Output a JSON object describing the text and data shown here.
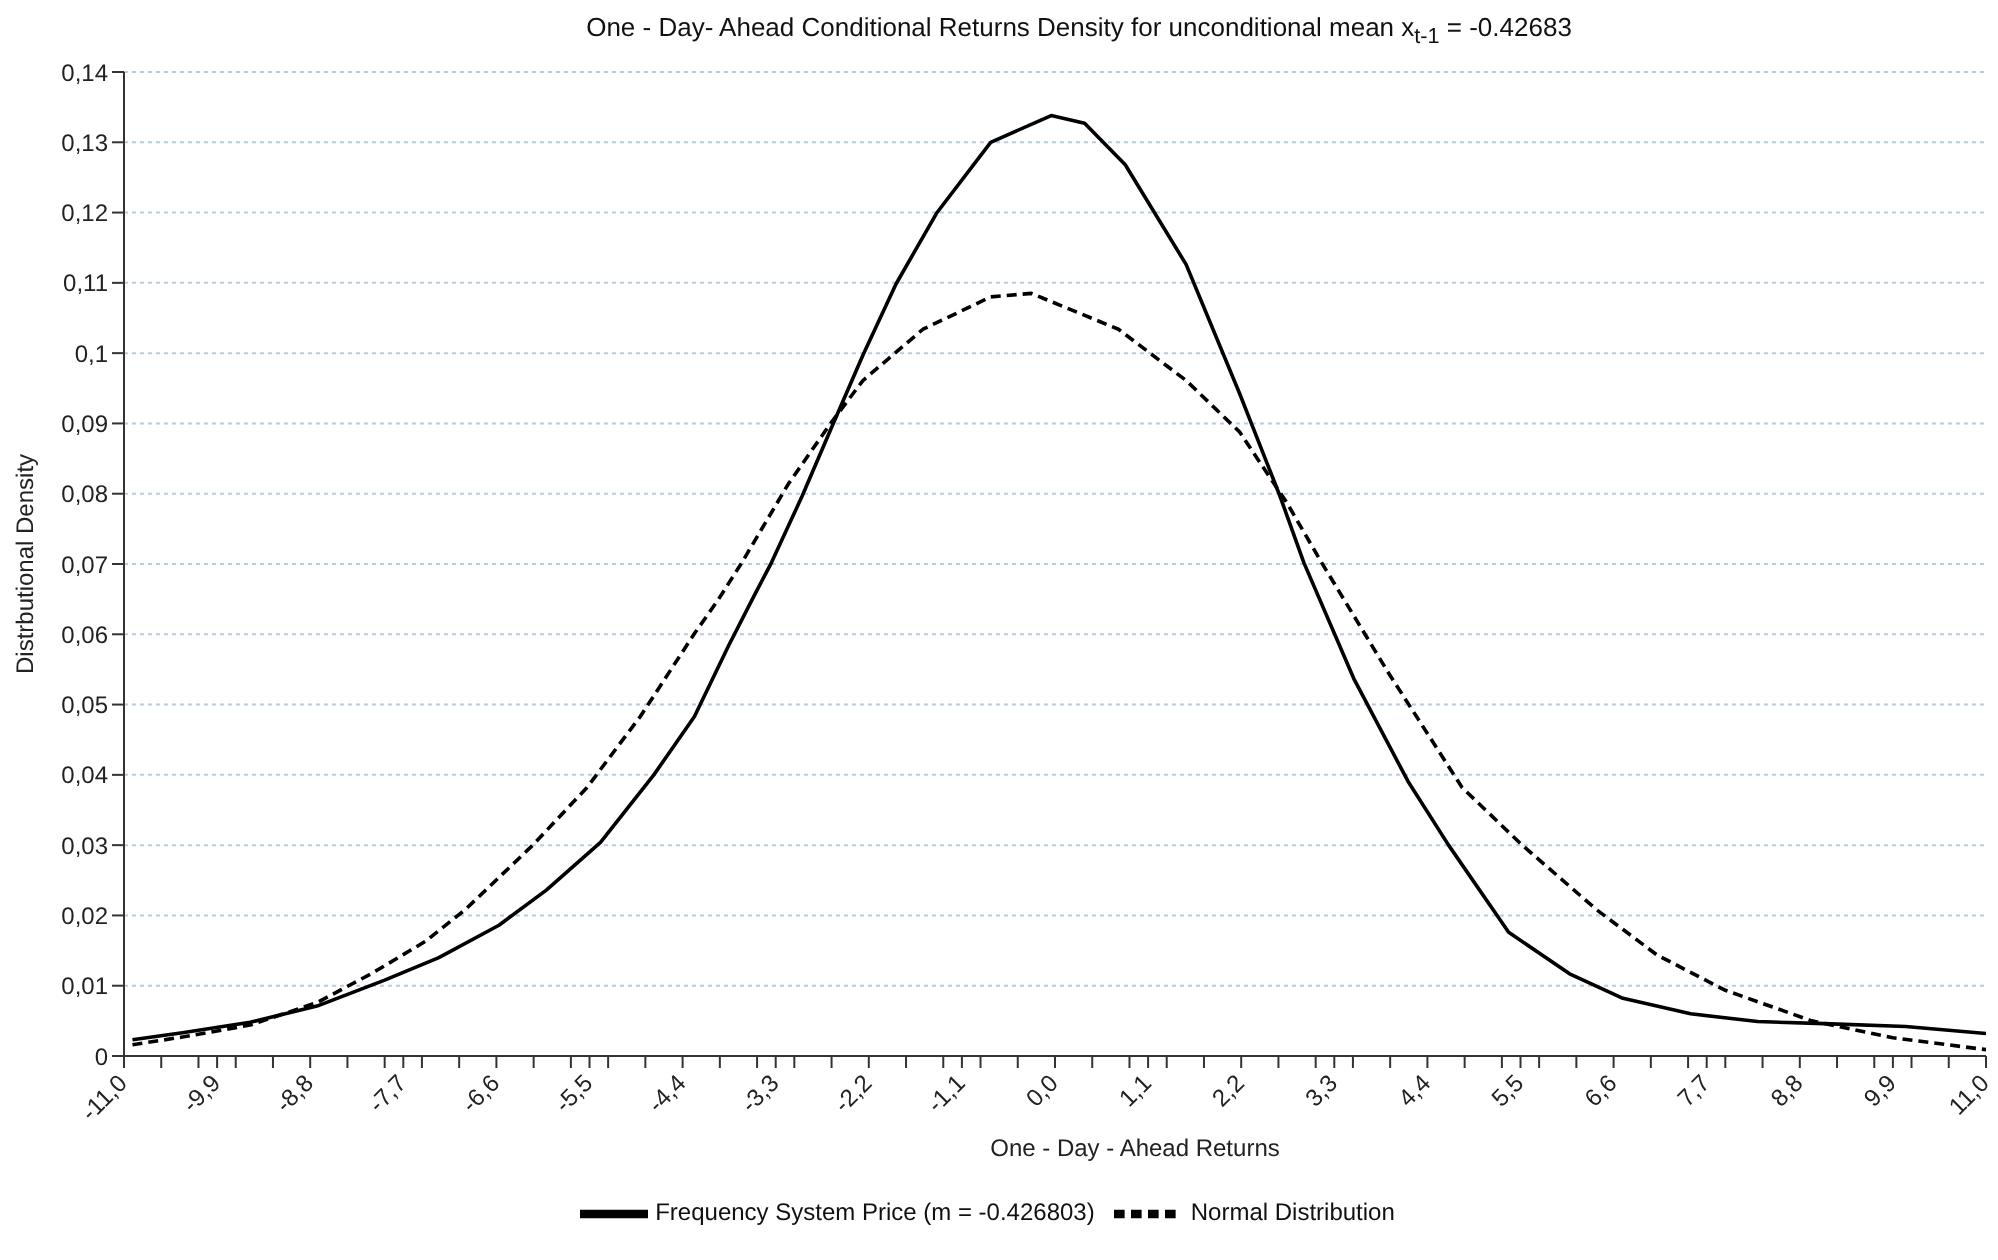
{
  "chart_data": {
    "type": "line",
    "title": "One - Day- Ahead Conditional Returns Density for unconditional mean x$_{t-1}$ = -0.42683",
    "xlabel": "One - Day - Ahead Returns",
    "ylabel": "Distrbutional Density",
    "series": [
      {
        "name": "Frequency System Price (m = -0.426803)",
        "color": "#000000",
        "line_style": "solid",
        "x": [
          -10.9,
          -10.31,
          -9.51,
          -8.72,
          -7.92,
          -7.28,
          -6.57,
          -6.01,
          -5.37,
          -4.74,
          -4.26,
          -3.86,
          -3.58,
          -3.35,
          -2.99,
          -2.63,
          -2.27,
          -1.88,
          -1.4,
          -0.76,
          -0.045,
          0.35,
          0.83,
          1.55,
          2.18,
          2.66,
          2.94,
          3.53,
          4.17,
          4.65,
          5.36,
          6.08,
          6.71,
          7.51,
          8.3,
          9.09,
          10.05,
          11.0
        ],
        "values": [
          0.0023,
          0.0033,
          0.0048,
          0.0071,
          0.0108,
          0.014,
          0.0186,
          0.0236,
          0.0304,
          0.04,
          0.0483,
          0.0583,
          0.0649,
          0.0702,
          0.0796,
          0.0897,
          0.0997,
          0.1098,
          0.1199,
          0.13,
          0.1338,
          0.1327,
          0.1268,
          0.1126,
          0.0943,
          0.0796,
          0.0702,
          0.0537,
          0.0391,
          0.03,
          0.0176,
          0.0117,
          0.0082,
          0.006,
          0.0049,
          0.0046,
          0.0042,
          0.0032
        ]
      },
      {
        "name": "Normal Distribution",
        "color": "#000000",
        "line_style": "dashed",
        "x": [
          -10.9,
          -10.31,
          -9.51,
          -8.72,
          -8.08,
          -7.44,
          -6.97,
          -6.17,
          -5.53,
          -4.9,
          -4.26,
          -3.98,
          -3.7,
          -3.15,
          -2.67,
          -2.27,
          -1.56,
          -0.76,
          -0.28,
          0.75,
          1.55,
          2.18,
          2.74,
          3.15,
          3.93,
          4.81,
          5.52,
          6.4,
          7.11,
          7.91,
          8.94,
          9.9,
          11.0
        ],
        "values": [
          0.0016,
          0.0027,
          0.0044,
          0.0076,
          0.0117,
          0.0163,
          0.0208,
          0.03,
          0.0382,
          0.0483,
          0.0601,
          0.0649,
          0.0702,
          0.0814,
          0.0897,
          0.0961,
          0.1034,
          0.108,
          0.1085,
          0.1034,
          0.0961,
          0.0888,
          0.0787,
          0.0702,
          0.0547,
          0.0382,
          0.03,
          0.0208,
          0.0144,
          0.0094,
          0.005,
          0.0026,
          0.0009
        ]
      }
    ],
    "xlim": [
      -11,
      11
    ],
    "xticks": [
      {
        "value": -11,
        "label": "-11,0"
      },
      {
        "value": -10.56,
        "label": null
      },
      {
        "value": -10.12,
        "label": null
      },
      {
        "value": -9.9,
        "label": "-9,9"
      },
      {
        "value": -9.68,
        "label": null
      },
      {
        "value": -9.24,
        "label": null
      },
      {
        "value": -8.8,
        "label": "-8,8"
      },
      {
        "value": -8.36,
        "label": null
      },
      {
        "value": -7.92,
        "label": null
      },
      {
        "value": -7.7,
        "label": "-7,7"
      },
      {
        "value": -7.48,
        "label": null
      },
      {
        "value": -7.04,
        "label": null
      },
      {
        "value": -6.6,
        "label": "-6,6"
      },
      {
        "value": -6.16,
        "label": null
      },
      {
        "value": -5.72,
        "label": null
      },
      {
        "value": -5.5,
        "label": "-5,5"
      },
      {
        "value": -5.28,
        "label": null
      },
      {
        "value": -4.84,
        "label": null
      },
      {
        "value": -4.4,
        "label": "-4,4"
      },
      {
        "value": -3.96,
        "label": null
      },
      {
        "value": -3.52,
        "label": null
      },
      {
        "value": -3.3,
        "label": "-3,3"
      },
      {
        "value": -3.08,
        "label": null
      },
      {
        "value": -2.64,
        "label": null
      },
      {
        "value": -2.2,
        "label": "-2,2"
      },
      {
        "value": -1.76,
        "label": null
      },
      {
        "value": -1.32,
        "label": null
      },
      {
        "value": -1.1,
        "label": "-1,1"
      },
      {
        "value": -0.88,
        "label": null
      },
      {
        "value": -0.44,
        "label": null
      },
      {
        "value": 0,
        "label": "0,0"
      },
      {
        "value": 0.44,
        "label": null
      },
      {
        "value": 0.88,
        "label": null
      },
      {
        "value": 1.1,
        "label": "1,1"
      },
      {
        "value": 1.32,
        "label": null
      },
      {
        "value": 1.76,
        "label": null
      },
      {
        "value": 2.2,
        "label": "2,2"
      },
      {
        "value": 2.64,
        "label": null
      },
      {
        "value": 3.08,
        "label": null
      },
      {
        "value": 3.3,
        "label": "3,3"
      },
      {
        "value": 3.52,
        "label": null
      },
      {
        "value": 3.96,
        "label": null
      },
      {
        "value": 4.4,
        "label": "4,4"
      },
      {
        "value": 4.84,
        "label": null
      },
      {
        "value": 5.28,
        "label": null
      },
      {
        "value": 5.5,
        "label": "5,5"
      },
      {
        "value": 5.72,
        "label": null
      },
      {
        "value": 6.16,
        "label": null
      },
      {
        "value": 6.6,
        "label": "6,6"
      },
      {
        "value": 7.04,
        "label": null
      },
      {
        "value": 7.48,
        "label": null
      },
      {
        "value": 7.7,
        "label": "7,7"
      },
      {
        "value": 7.92,
        "label": null
      },
      {
        "value": 8.36,
        "label": null
      },
      {
        "value": 8.8,
        "label": "8,8"
      },
      {
        "value": 9.24,
        "label": null
      },
      {
        "value": 9.68,
        "label": null
      },
      {
        "value": 9.9,
        "label": "9,9"
      },
      {
        "value": 10.12,
        "label": null
      },
      {
        "value": 10.56,
        "label": null
      },
      {
        "value": 11,
        "label": "11,0"
      }
    ],
    "ylim": [
      0,
      0.14
    ],
    "yticks": [
      0,
      {
        "value": 0.01,
        "label": "0,01"
      },
      {
        "value": 0.02,
        "label": "0,02"
      },
      {
        "value": 0.03,
        "label": "0,03"
      },
      {
        "value": 0.04,
        "label": "0,04"
      },
      {
        "value": 0.05,
        "label": "0,05"
      },
      {
        "value": 0.06,
        "label": "0,06"
      },
      {
        "value": 0.07,
        "label": "0,07"
      },
      {
        "value": 0.08,
        "label": "0,08"
      },
      {
        "value": 0.09,
        "label": "0,09"
      },
      {
        "value": 0.1,
        "label": "0,1"
      },
      {
        "value": 0.11,
        "label": "0,11"
      },
      {
        "value": 0.12,
        "label": "0,12"
      },
      {
        "value": 0.13,
        "label": "0,13"
      },
      {
        "value": 0.14,
        "label": "0,14"
      }
    ],
    "grid": "y",
    "legend": "bottom",
    "marker": "none"
  }
}
